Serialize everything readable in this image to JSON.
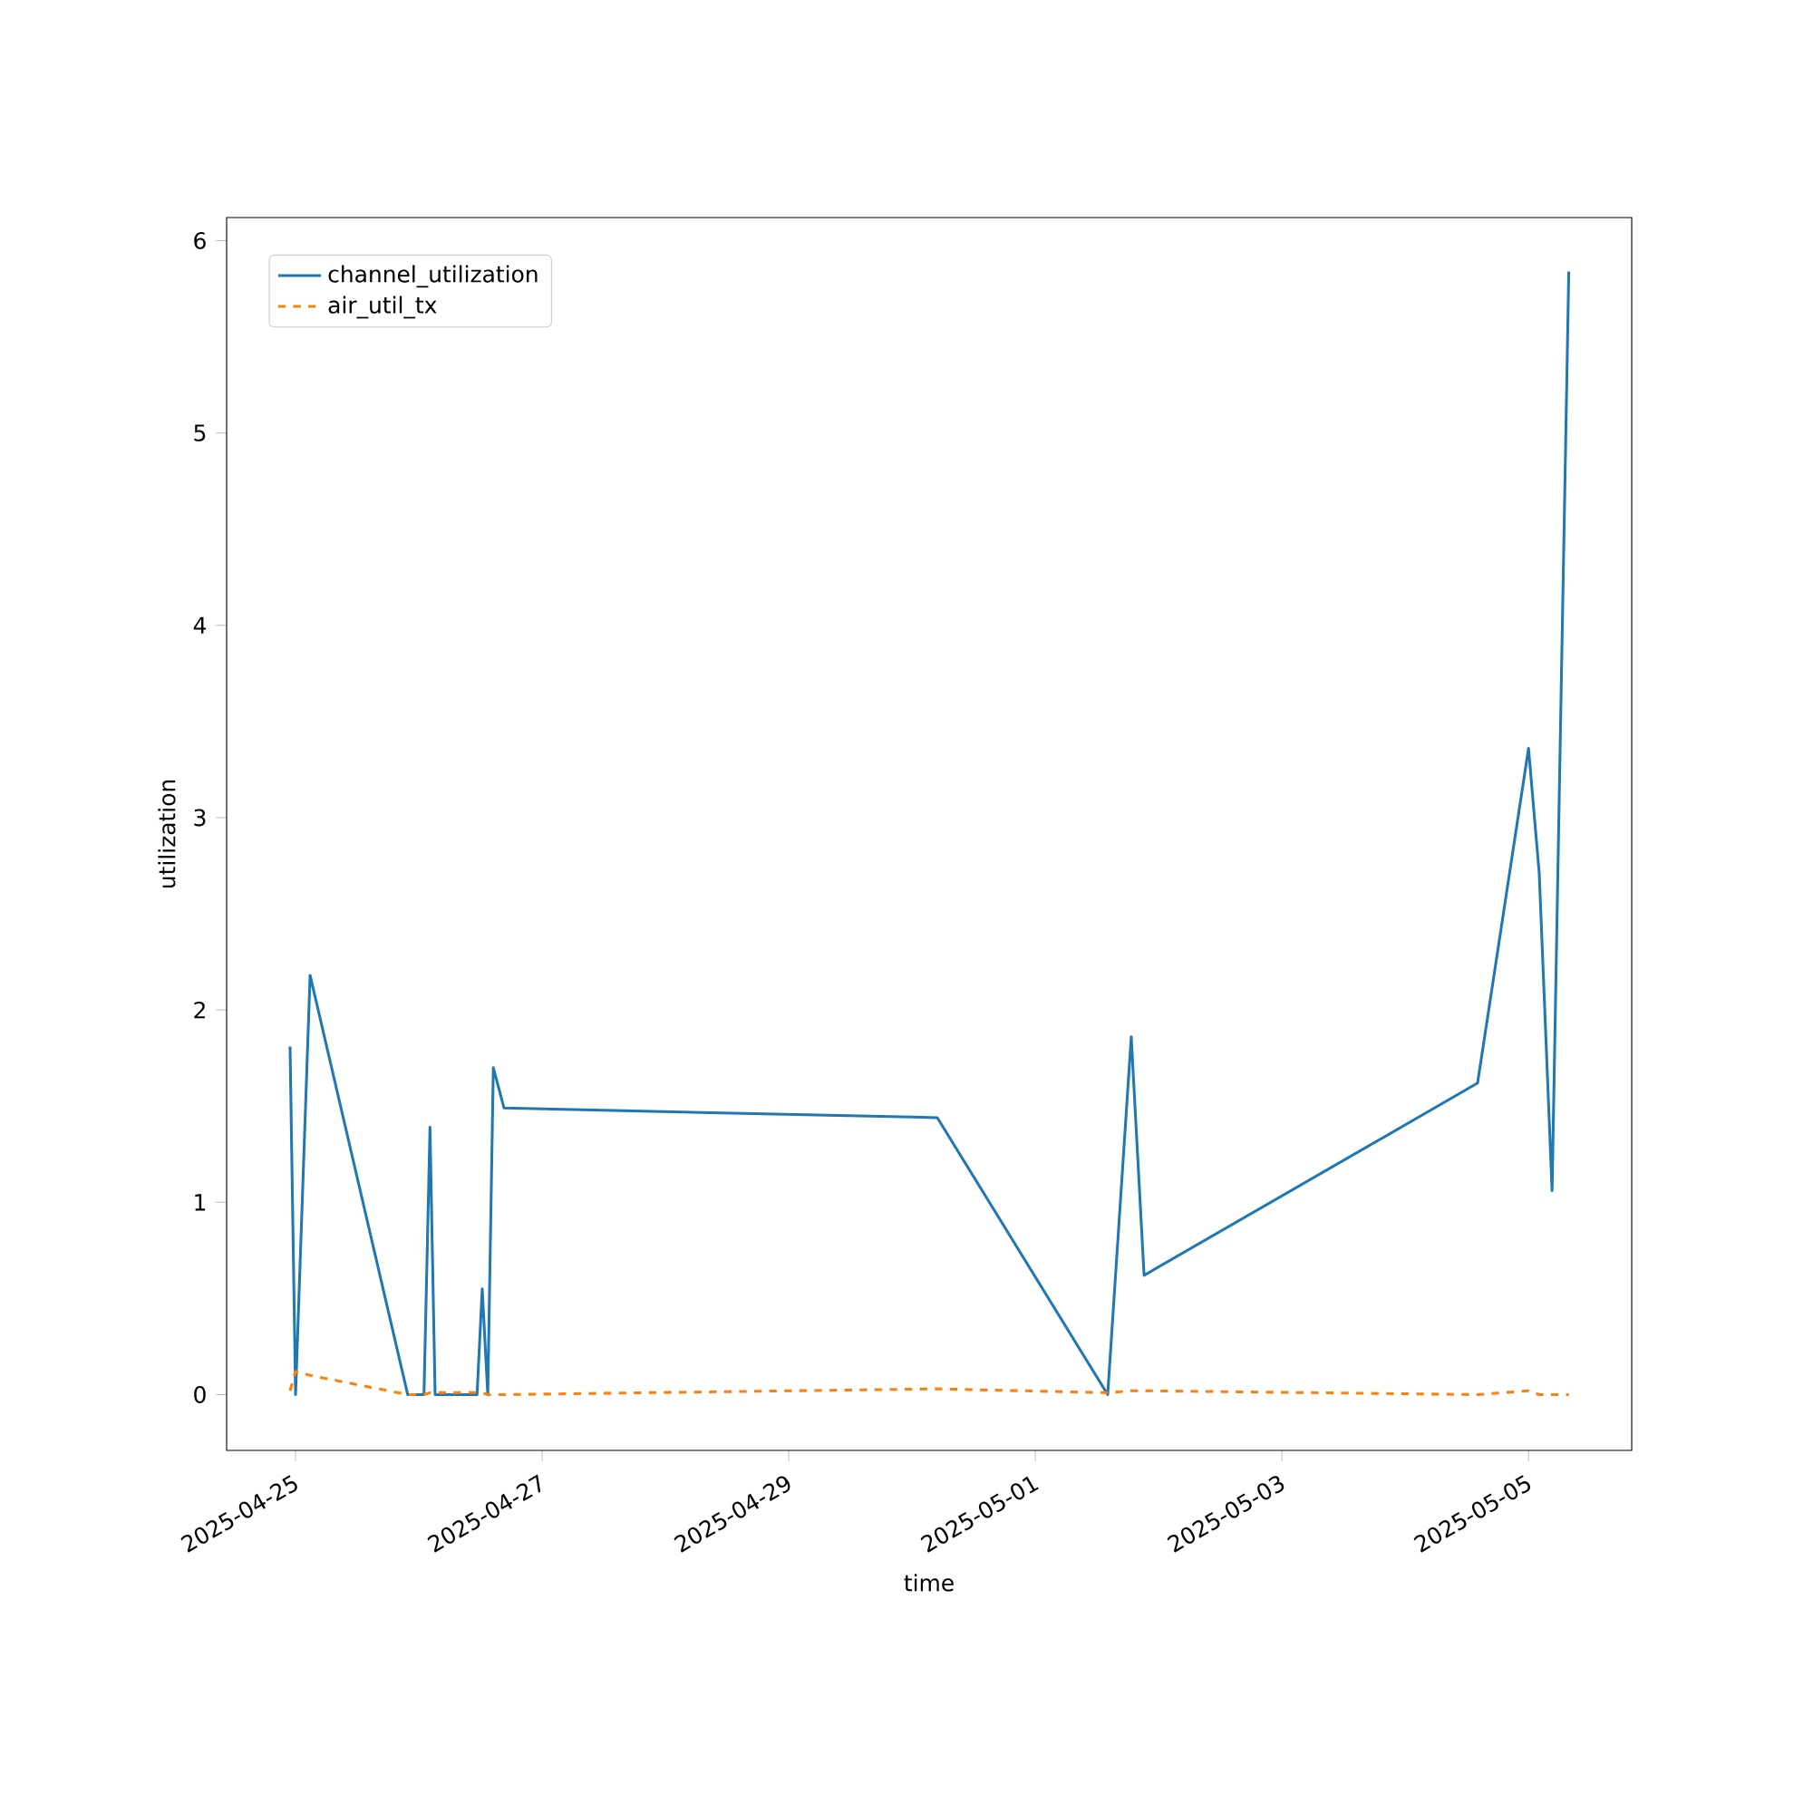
{
  "chart_data": {
    "type": "line",
    "xlabel": "time",
    "ylabel": "utilization",
    "x": [
      "2025-04-24T22:56",
      "2025-04-25T00:00",
      "2025-04-25T02:50",
      "2025-04-25T21:50",
      "2025-04-26T01:00",
      "2025-04-26T02:10",
      "2025-04-26T03:10",
      "2025-04-26T11:20",
      "2025-04-26T12:20",
      "2025-04-26T13:25",
      "2025-04-26T14:30",
      "2025-04-26T16:35",
      "2025-04-30T04:55",
      "2025-05-01T14:05",
      "2025-05-01T18:40",
      "2025-05-01T21:10",
      "2025-05-04T14:05",
      "2025-05-05T00:00",
      "2025-05-05T02:05",
      "2025-05-05T04:35",
      "2025-05-05T07:50"
    ],
    "series": [
      {
        "name": "channel_utilization",
        "color": "#1f77b4",
        "line_style": "solid",
        "values": [
          1.81,
          0.0,
          2.18,
          0.0,
          0.0,
          1.39,
          0.0,
          0.0,
          0.55,
          0.0,
          1.7,
          1.49,
          1.44,
          0.0,
          1.86,
          0.62,
          1.62,
          3.36,
          2.71,
          1.06,
          5.84
        ]
      },
      {
        "name": "air_util_tx",
        "color": "#ff7f0e",
        "line_style": "dashed",
        "values": [
          0.02,
          0.12,
          0.1,
          0.0,
          0.0,
          0.01,
          0.01,
          0.01,
          0.01,
          0.0,
          0.0,
          0.0,
          0.03,
          0.01,
          0.02,
          0.02,
          0.0,
          0.02,
          0.0,
          0.0,
          0.0
        ]
      }
    ],
    "xlim": [
      "2025-04-24T10:35",
      "2025-05-05T20:05"
    ],
    "xticks": [
      "2025-04-25",
      "2025-04-27",
      "2025-04-29",
      "2025-05-01",
      "2025-05-03",
      "2025-05-05"
    ],
    "ylim": [
      -0.29,
      6.12
    ],
    "yticks": [
      0,
      1,
      2,
      3,
      4,
      5,
      6
    ],
    "legend": "top left",
    "grid": false
  }
}
